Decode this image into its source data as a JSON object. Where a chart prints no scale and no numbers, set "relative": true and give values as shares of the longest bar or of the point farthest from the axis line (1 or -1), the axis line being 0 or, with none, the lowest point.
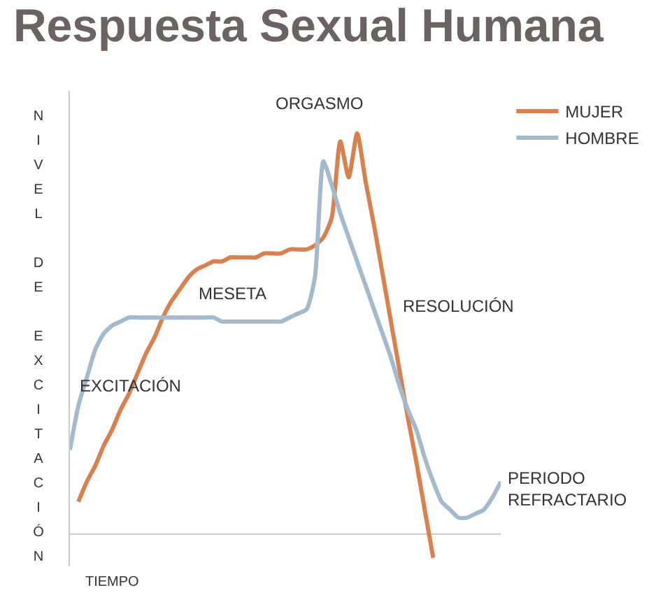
{
  "chart_data": {
    "type": "line",
    "title": "Respuesta Sexual Humana",
    "xlabel": "TIEMPO",
    "ylabel": "NIVEL DE EXCITACIÓN",
    "relative": true,
    "legend": "top right",
    "grid": false,
    "marker": "none",
    "line_style": "solid",
    "annotations": [
      "ORGASMO",
      "MESETA",
      "EXCITACIÓN",
      "RESOLUCIÓN",
      "PERIODO REFRACTARIO"
    ],
    "categories": [
      null,
      null,
      null,
      null,
      null,
      null,
      null,
      null,
      null,
      null,
      null,
      null,
      null,
      null,
      null,
      null,
      null,
      null,
      null,
      null,
      null,
      null,
      null,
      null,
      null,
      null,
      null,
      null,
      null,
      null,
      null,
      null,
      null,
      null,
      null,
      null,
      null,
      null,
      null,
      null,
      null,
      null,
      null,
      null,
      null,
      null,
      null,
      null,
      null,
      null,
      null,
      null
    ],
    "series": [
      {
        "name": "MUJER",
        "color": "#d9804f",
        "values": [
          null,
          0.08,
          0.13,
          0.17,
          0.22,
          0.26,
          0.31,
          0.35,
          0.4,
          0.45,
          0.49,
          0.54,
          0.58,
          0.61,
          0.64,
          0.66,
          0.67,
          0.68,
          0.68,
          0.69,
          0.69,
          0.69,
          0.69,
          0.7,
          0.7,
          0.7,
          0.71,
          0.71,
          0.71,
          0.72,
          0.74,
          0.79,
          0.98,
          0.89,
          1.0,
          0.88,
          0.77,
          0.65,
          0.53,
          0.41,
          0.29,
          0.18,
          0.06,
          -0.06,
          null,
          null,
          null,
          null,
          null,
          null,
          null,
          null
        ]
      },
      {
        "name": "HOMBRE",
        "color": "#a3b9cc",
        "values": [
          0.21,
          0.32,
          0.39,
          0.46,
          0.5,
          0.52,
          0.53,
          0.54,
          0.54,
          0.54,
          0.54,
          0.54,
          0.54,
          0.54,
          0.54,
          0.54,
          0.54,
          0.54,
          0.53,
          0.53,
          0.53,
          0.53,
          0.53,
          0.53,
          0.53,
          0.53,
          0.54,
          0.55,
          0.56,
          0.64,
          0.93,
          0.87,
          0.8,
          0.74,
          0.68,
          0.62,
          0.56,
          0.5,
          0.44,
          0.37,
          0.31,
          0.26,
          0.19,
          0.13,
          0.08,
          0.06,
          0.04,
          0.04,
          0.05,
          0.06,
          0.09,
          0.13
        ]
      }
    ]
  }
}
